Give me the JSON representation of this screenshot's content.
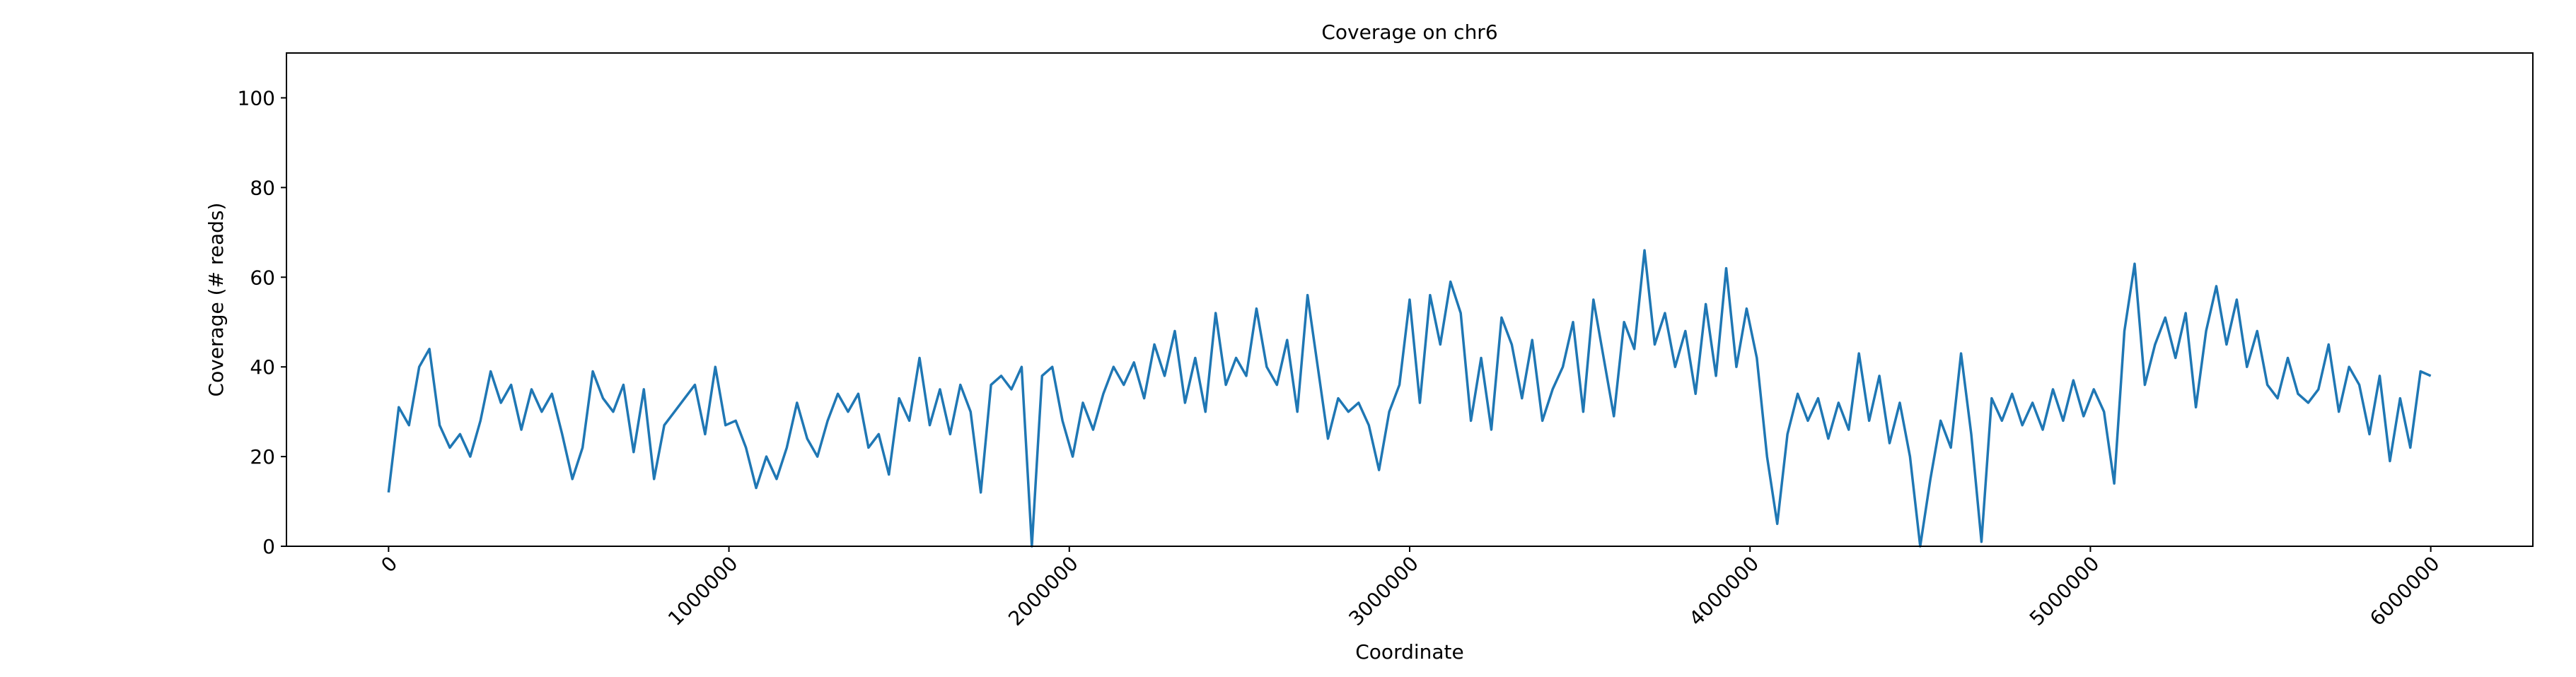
{
  "chart_data": {
    "type": "line",
    "title": "Coverage on chr6",
    "x_label": "Coordinate",
    "y_label": "Coverage (# reads)",
    "x": [
      0,
      30000,
      60000,
      90000,
      120000,
      150000,
      180000,
      210000,
      240000,
      270000,
      300000,
      330000,
      360000,
      390000,
      420000,
      450000,
      480000,
      510000,
      540000,
      570000,
      600000,
      630000,
      660000,
      690000,
      720000,
      750000,
      780000,
      810000,
      840000,
      870000,
      900000,
      930000,
      960000,
      990000,
      1020000,
      1050000,
      1080000,
      1110000,
      1140000,
      1170000,
      1200000,
      1230000,
      1260000,
      1290000,
      1320000,
      1350000,
      1380000,
      1410000,
      1440000,
      1470000,
      1500000,
      1530000,
      1560000,
      1590000,
      1620000,
      1650000,
      1680000,
      1710000,
      1740000,
      1770000,
      1800000,
      1830000,
      1860000,
      1890000,
      1920000,
      1950000,
      1980000,
      2010000,
      2040000,
      2070000,
      2100000,
      2130000,
      2160000,
      2190000,
      2220000,
      2250000,
      2280000,
      2310000,
      2340000,
      2370000,
      2400000,
      2430000,
      2460000,
      2490000,
      2520000,
      2550000,
      2580000,
      2610000,
      2640000,
      2670000,
      2700000,
      2730000,
      2760000,
      2790000,
      2820000,
      2850000,
      2880000,
      2910000,
      2940000,
      2970000,
      3000000,
      3030000,
      3060000,
      3090000,
      3120000,
      3150000,
      3180000,
      3210000,
      3240000,
      3270000,
      3300000,
      3330000,
      3360000,
      3390000,
      3420000,
      3450000,
      3480000,
      3510000,
      3540000,
      3570000,
      3600000,
      3630000,
      3660000,
      3690000,
      3720000,
      3750000,
      3780000,
      3810000,
      3840000,
      3870000,
      3900000,
      3930000,
      3960000,
      3990000,
      4020000,
      4050000,
      4080000,
      4110000,
      4140000,
      4170000,
      4200000,
      4230000,
      4260000,
      4290000,
      4320000,
      4350000,
      4380000,
      4410000,
      4440000,
      4470000,
      4500000,
      4530000,
      4560000,
      4590000,
      4620000,
      4650000,
      4680000,
      4710000,
      4740000,
      4770000,
      4800000,
      4830000,
      4860000,
      4890000,
      4920000,
      4950000,
      4980000,
      5010000,
      5040000,
      5070000,
      5100000,
      5130000,
      5160000,
      5190000,
      5220000,
      5250000,
      5280000,
      5310000,
      5340000,
      5370000,
      5400000,
      5430000,
      5460000,
      5490000,
      5520000,
      5550000,
      5580000,
      5610000,
      5640000,
      5670000,
      5700000,
      5730000,
      5760000,
      5790000,
      5820000,
      5850000,
      5880000,
      5910000,
      5940000,
      5970000,
      6000000
    ],
    "series": [
      {
        "color": "#1f77b4",
        "values": [
          12,
          31,
          27,
          40,
          44,
          27,
          22,
          25,
          20,
          28,
          39,
          32,
          36,
          26,
          35,
          30,
          34,
          25,
          15,
          22,
          39,
          33,
          30,
          36,
          21,
          35,
          15,
          27,
          30,
          33,
          36,
          25,
          40,
          27,
          28,
          22,
          13,
          20,
          15,
          22,
          32,
          24,
          20,
          28,
          34,
          30,
          34,
          22,
          25,
          16,
          33,
          28,
          42,
          27,
          35,
          25,
          36,
          30,
          12,
          36,
          38,
          35,
          40,
          0,
          38,
          40,
          28,
          20,
          32,
          26,
          34,
          40,
          36,
          41,
          33,
          45,
          38,
          48,
          32,
          42,
          30,
          52,
          36,
          42,
          38,
          53,
          40,
          36,
          46,
          30,
          56,
          40,
          24,
          33,
          30,
          32,
          27,
          17,
          30,
          36,
          55,
          32,
          56,
          45,
          59,
          52,
          28,
          42,
          26,
          51,
          45,
          33,
          46,
          28,
          35,
          40,
          50,
          30,
          55,
          42,
          29,
          50,
          44,
          66,
          45,
          52,
          40,
          48,
          34,
          54,
          38,
          62,
          40,
          53,
          42,
          20,
          5,
          25,
          34,
          28,
          33,
          24,
          32,
          26,
          43,
          28,
          38,
          23,
          32,
          20,
          0,
          15,
          28,
          22,
          43,
          25,
          1,
          33,
          28,
          34,
          27,
          32,
          26,
          35,
          28,
          37,
          29,
          35,
          30,
          14,
          48,
          63,
          36,
          45,
          51,
          42,
          52,
          31,
          48,
          58,
          45,
          55,
          40,
          48,
          36,
          33,
          42,
          34,
          32,
          35,
          45,
          30,
          40,
          36,
          25,
          38,
          19,
          33,
          22,
          39,
          38
        ]
      }
    ],
    "xlim": [
      -300000,
      6300000
    ],
    "xticks": [
      0,
      1000000,
      2000000,
      3000000,
      4000000,
      5000000,
      6000000
    ],
    "ylim": [
      0,
      110
    ],
    "yticks": [
      0,
      20,
      40,
      60,
      80,
      100
    ]
  }
}
